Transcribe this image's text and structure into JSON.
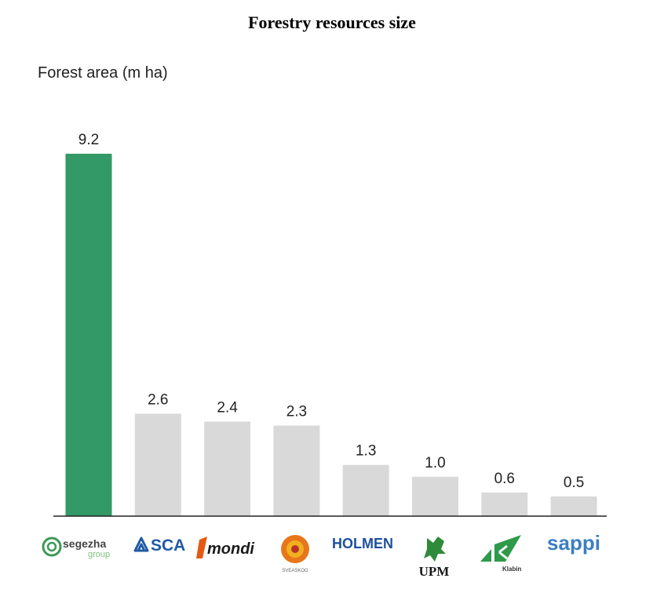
{
  "title": "Forestry resources size",
  "chart_data": {
    "type": "bar",
    "ylabel": "Forest area (m ha)",
    "categories": [
      "segezha group",
      "SCA",
      "mondi",
      "SVEASKOG",
      "HOLMEN",
      "UPM",
      "Klabin",
      "sappi"
    ],
    "values": [
      9.2,
      2.6,
      2.4,
      2.3,
      1.3,
      1.0,
      0.6,
      0.5
    ],
    "value_labels": [
      "9.2",
      "2.6",
      "2.4",
      "2.3",
      "1.3",
      "1.0",
      "0.6",
      "0.5"
    ],
    "ylim": [
      0,
      9.2
    ],
    "grid": false,
    "colors": {
      "highlight": "#339966",
      "default": "#d9d9d9"
    }
  },
  "logos": {
    "segezha_main": "segezha",
    "segezha_sub": "group",
    "sca": "SCA",
    "mondi": "mondi",
    "sveaskog": "SVEASKOG",
    "holmen": "HOLMEN",
    "upm": "UPM",
    "klabin": "Klabin",
    "sappi": "sappi"
  },
  "logo_colors": {
    "segezha": "#3a9a55",
    "sca": "#1f5aa6",
    "mondi": "#e45a12",
    "sveaskog": "#e8761a",
    "holmen": "#1d4f9c",
    "upm": "#2e8b3a",
    "klabin": "#2e9a4a",
    "sappi": "#3a7fc4"
  }
}
